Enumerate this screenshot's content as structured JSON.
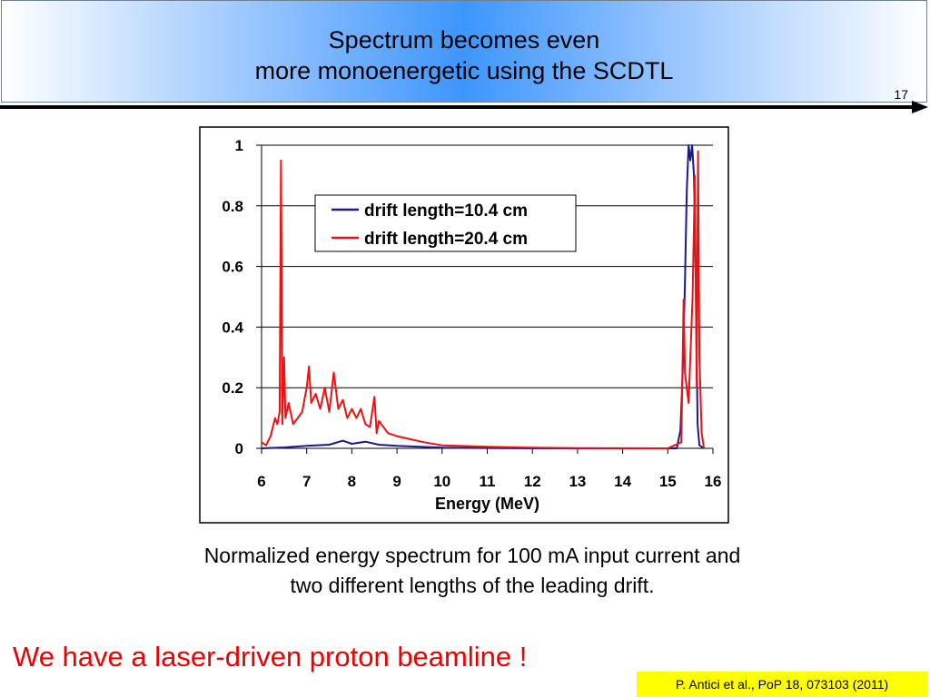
{
  "slide": {
    "title_line1": "Spectrum becomes even",
    "title_line2": "more monoenergetic using the SCDTL",
    "number": "17",
    "caption_line1": "Normalized energy spectrum for 100 mA input current and",
    "caption_line2": "two different lengths of the leading drift.",
    "tagline": "We have a laser-driven proton beamline !",
    "reference": "P. Antici et al., PoP 18, 073103 (2011)"
  },
  "colors": {
    "title_gradient_center": "#3d96ff",
    "tagline": "#ee0000",
    "reference_bg": "#ffff00",
    "series_blue": "#1a1a8c",
    "series_red": "#ee1111"
  },
  "chart_data": {
    "type": "line",
    "title": "",
    "xlabel": "Energy (MeV)",
    "ylabel": "",
    "xlim": [
      6,
      16
    ],
    "ylim": [
      0,
      1
    ],
    "xticks": [
      6,
      7,
      8,
      9,
      10,
      11,
      12,
      13,
      14,
      15,
      16
    ],
    "xtick_labels": [
      "6",
      "7",
      "8",
      "9",
      "10",
      "11",
      "12",
      "13",
      "14",
      "15",
      "16"
    ],
    "yticks": [
      0,
      0.2,
      0.4,
      0.6,
      0.8,
      1
    ],
    "ytick_labels": [
      "0",
      "0.2",
      "0.4",
      "0.6",
      "0.8",
      "1"
    ],
    "grid": "horizontal",
    "legend_position": "upper-center",
    "series": [
      {
        "name": "drift length=10.4 cm",
        "color": "#1a1a8c",
        "points": [
          [
            6.0,
            0.0
          ],
          [
            6.5,
            0.003
          ],
          [
            7.0,
            0.008
          ],
          [
            7.5,
            0.012
          ],
          [
            7.8,
            0.025
          ],
          [
            8.0,
            0.015
          ],
          [
            8.3,
            0.022
          ],
          [
            8.6,
            0.012
          ],
          [
            9.0,
            0.008
          ],
          [
            9.5,
            0.005
          ],
          [
            10.0,
            0.002
          ],
          [
            12.0,
            0.0
          ],
          [
            15.2,
            0.0
          ],
          [
            15.28,
            0.06
          ],
          [
            15.33,
            0.25
          ],
          [
            15.38,
            0.55
          ],
          [
            15.42,
            0.85
          ],
          [
            15.46,
            1.0
          ],
          [
            15.5,
            0.95
          ],
          [
            15.54,
            1.0
          ],
          [
            15.58,
            0.9
          ],
          [
            15.62,
            0.55
          ],
          [
            15.66,
            0.08
          ],
          [
            15.7,
            0.01
          ],
          [
            15.8,
            0.0
          ]
        ]
      },
      {
        "name": "drift length=20.4 cm",
        "color": "#ee1111",
        "points": [
          [
            6.0,
            0.02
          ],
          [
            6.1,
            0.01
          ],
          [
            6.2,
            0.04
          ],
          [
            6.3,
            0.1
          ],
          [
            6.35,
            0.08
          ],
          [
            6.4,
            0.12
          ],
          [
            6.43,
            0.95
          ],
          [
            6.46,
            0.08
          ],
          [
            6.5,
            0.3
          ],
          [
            6.53,
            0.1
          ],
          [
            6.6,
            0.15
          ],
          [
            6.7,
            0.08
          ],
          [
            6.8,
            0.1
          ],
          [
            6.9,
            0.12
          ],
          [
            7.0,
            0.2
          ],
          [
            7.05,
            0.27
          ],
          [
            7.1,
            0.15
          ],
          [
            7.2,
            0.18
          ],
          [
            7.3,
            0.13
          ],
          [
            7.4,
            0.2
          ],
          [
            7.5,
            0.12
          ],
          [
            7.6,
            0.25
          ],
          [
            7.7,
            0.13
          ],
          [
            7.8,
            0.16
          ],
          [
            7.9,
            0.1
          ],
          [
            8.0,
            0.13
          ],
          [
            8.1,
            0.1
          ],
          [
            8.2,
            0.13
          ],
          [
            8.3,
            0.08
          ],
          [
            8.4,
            0.07
          ],
          [
            8.5,
            0.17
          ],
          [
            8.55,
            0.05
          ],
          [
            8.6,
            0.09
          ],
          [
            8.8,
            0.05
          ],
          [
            9.0,
            0.04
          ],
          [
            9.3,
            0.03
          ],
          [
            9.6,
            0.02
          ],
          [
            10.0,
            0.01
          ],
          [
            11.0,
            0.005
          ],
          [
            12.0,
            0.002
          ],
          [
            13.0,
            0.001
          ],
          [
            15.0,
            0.0
          ],
          [
            15.3,
            0.02
          ],
          [
            15.35,
            0.49
          ],
          [
            15.38,
            0.25
          ],
          [
            15.42,
            0.2
          ],
          [
            15.46,
            0.15
          ],
          [
            15.5,
            0.3
          ],
          [
            15.55,
            0.5
          ],
          [
            15.6,
            0.9
          ],
          [
            15.64,
            0.2
          ],
          [
            15.67,
            0.98
          ],
          [
            15.7,
            0.3
          ],
          [
            15.75,
            0.05
          ],
          [
            15.8,
            0.0
          ]
        ]
      }
    ]
  }
}
